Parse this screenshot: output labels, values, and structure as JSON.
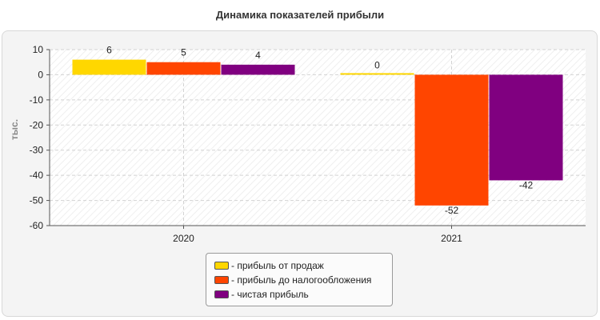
{
  "chart_data": {
    "type": "bar",
    "title": "Динамика показателей прибыли",
    "ylabel": "тыс.",
    "xlabel": "",
    "categories": [
      "2020",
      "2021"
    ],
    "ylim": [
      -60,
      10
    ],
    "yticks": [
      "10",
      "0",
      "-10",
      "-20",
      "-30",
      "-40",
      "-50",
      "-60"
    ],
    "series": [
      {
        "name": "- прибыль от продаж",
        "color": "#ffd700",
        "values": [
          6,
          0
        ],
        "labels": [
          "6",
          "0"
        ]
      },
      {
        "name": "- прибыль до налогообложения",
        "color": "#ff4500",
        "values": [
          5,
          -52
        ],
        "labels": [
          "5",
          "-52"
        ]
      },
      {
        "name": "- чистая прибыль",
        "color": "#800080",
        "values": [
          4,
          -42
        ],
        "labels": [
          "4",
          "-42"
        ]
      }
    ],
    "grid": true,
    "legend_position": "bottom"
  }
}
